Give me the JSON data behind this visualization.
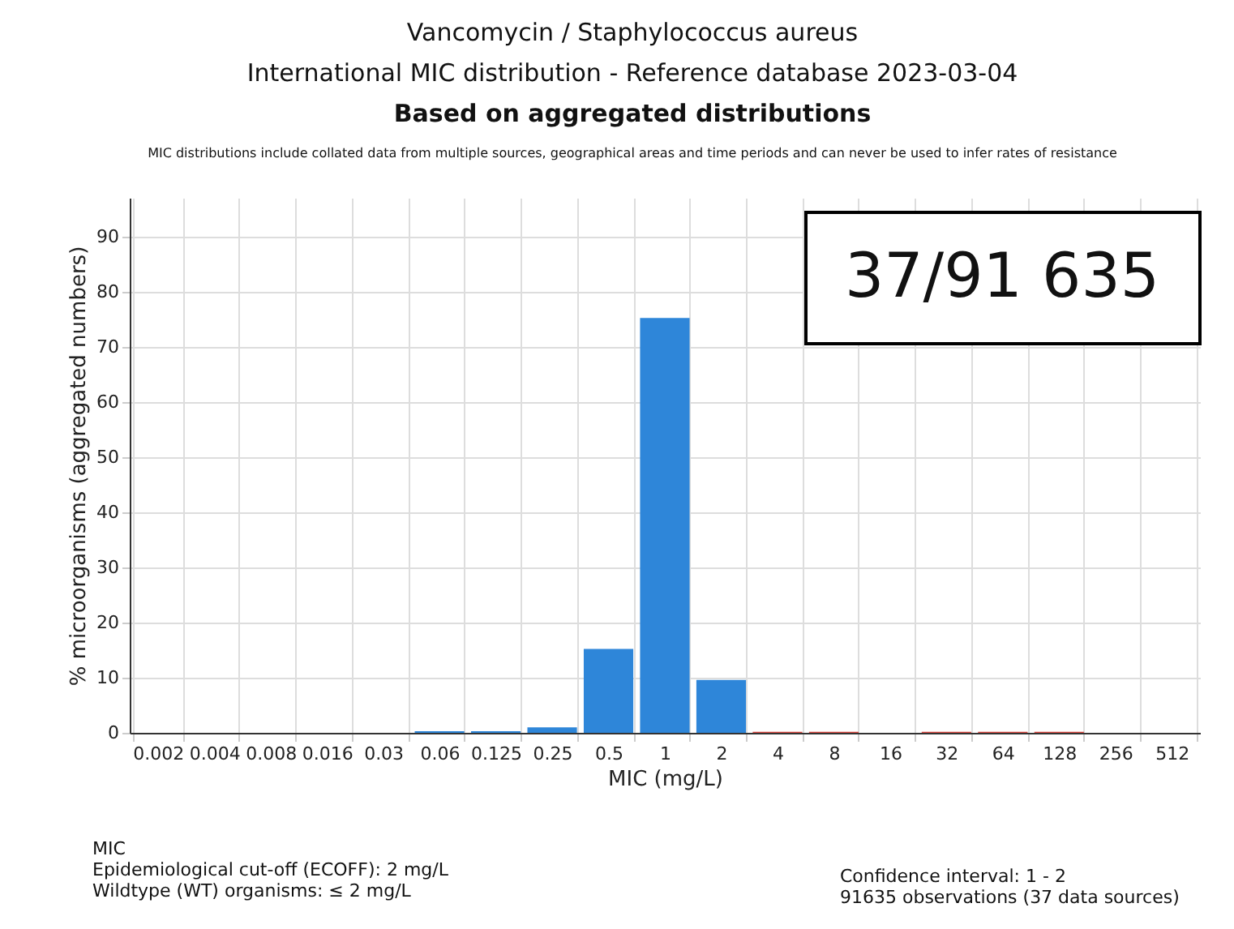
{
  "chart_data": {
    "type": "bar",
    "title": "Vancomycin / Staphylococcus aureus\nInternational MIC distribution - Reference database 2023-03-04",
    "subtitle": "Based on aggregated distributions",
    "xlabel": "MIC (mg/L)",
    "ylabel": "% microorganisms (aggregated numbers)",
    "categories": [
      "0.002",
      "0.004",
      "0.008",
      "0.016",
      "0.03",
      "0.06",
      "0.125",
      "0.25",
      "0.5",
      "1",
      "2",
      "4",
      "8",
      "16",
      "32",
      "64",
      "128",
      "256",
      "512"
    ],
    "values": [
      0,
      0,
      0,
      0,
      0,
      0.3,
      0.3,
      1,
      15.2,
      75.2,
      9.6,
      0.2,
      0.2,
      0,
      0.2,
      0.2,
      0.2,
      0,
      0
    ],
    "colors": [
      "#2e86d9",
      "#2e86d9",
      "#2e86d9",
      "#2e86d9",
      "#2e86d9",
      "#2e86d9",
      "#2e86d9",
      "#2e86d9",
      "#2e86d9",
      "#2e86d9",
      "#2e86d9",
      "#d9463e",
      "#d9463e",
      "#2e86d9",
      "#d9463e",
      "#d9463e",
      "#d9463e",
      "#2e86d9",
      "#2e86d9"
    ],
    "ylim": [
      0,
      97
    ],
    "yticks": [
      0,
      10,
      20,
      30,
      40,
      50,
      60,
      70,
      80,
      90
    ],
    "grid": true,
    "annotations": [
      "MIC distributions include collated data from multiple sources, geographical areas and time periods and can never be used to infer rates of resistance",
      "37/91 635",
      "MIC",
      "Epidemiological cut-off (ECOFF): 2 mg/L",
      "Wildtype (WT) organisms: ≤ 2 mg/L",
      "Confidence interval: 1 - 2",
      "91635 observations (37 data sources)"
    ]
  }
}
